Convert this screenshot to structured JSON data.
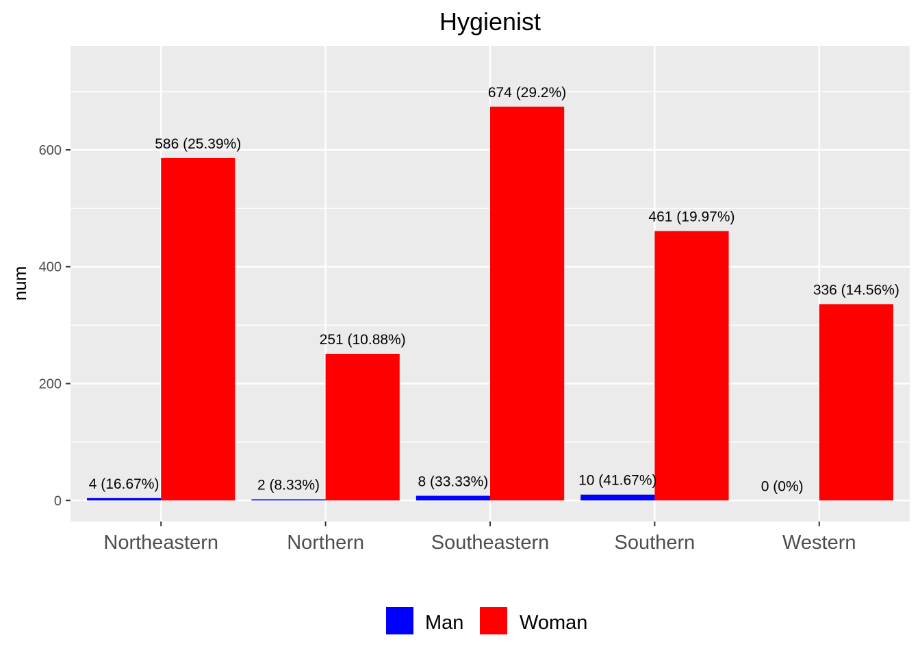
{
  "chart_data": {
    "type": "bar",
    "title": "Hygienist",
    "xlabel": "",
    "ylabel": "num",
    "categories": [
      "Northeastern",
      "Northern",
      "Southeastern",
      "Southern",
      "Western"
    ],
    "series": [
      {
        "name": "Man",
        "color": "#0000ff",
        "values": [
          4,
          2,
          8,
          10,
          0
        ],
        "labels": [
          "4 (16.67%)",
          "2 (8.33%)",
          "8 (33.33%)",
          "10 (41.67%)",
          "0 (0%)"
        ]
      },
      {
        "name": "Woman",
        "color": "#ff0000",
        "values": [
          586,
          251,
          674,
          461,
          336
        ],
        "labels": [
          "586 (25.39%)",
          "251 (10.88%)",
          "674 (29.2%)",
          "461 (19.97%)",
          "336 (14.56%)"
        ]
      }
    ],
    "yticks": [
      0,
      200,
      400,
      600
    ],
    "ylim": [
      -36,
      778
    ],
    "grid": true,
    "legend_position": "bottom",
    "panel_background": "#ebebeb",
    "grid_color": "#ffffff"
  }
}
